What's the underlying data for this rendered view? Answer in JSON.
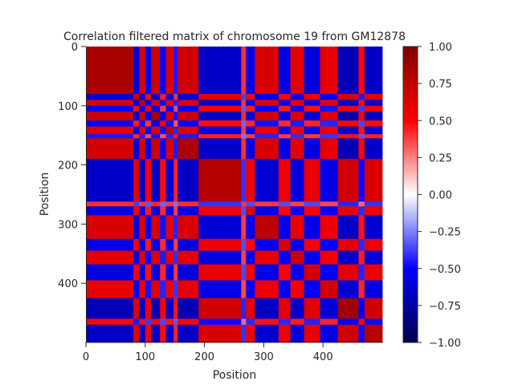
{
  "chart_data": {
    "type": "heatmap",
    "title": "Correlation filtered matrix of chromosome 19 from GM12878",
    "xlabel": "Position",
    "ylabel": "Position",
    "matrix_size": 500,
    "x_ticks": [
      0,
      100,
      200,
      300,
      400
    ],
    "y_ticks": [
      0,
      100,
      200,
      300,
      400
    ],
    "y_axis_direction": "top-down",
    "colormap": "seismic",
    "colormap_stops": [
      "#00004c",
      "#0000ff",
      "#ffffff",
      "#ff0000",
      "#7f0000"
    ],
    "vmin": -1.0,
    "vmax": 1.0,
    "colorbar_ticks": [
      1.0,
      0.75,
      0.5,
      0.25,
      0.0,
      -0.25,
      -0.5,
      -0.75,
      -1.0
    ],
    "colorbar_tick_labels": [
      "1.00",
      "0.75",
      "0.50",
      "0.25",
      "0.00",
      "−0.25",
      "−0.50",
      "−0.75",
      "−1.00"
    ],
    "compartments": [
      {
        "start": 0,
        "end": 80,
        "value": 0.82
      },
      {
        "start": 80,
        "end": 90,
        "value": -0.75
      },
      {
        "start": 90,
        "end": 100,
        "value": 0.8
      },
      {
        "start": 100,
        "end": 110,
        "value": -0.65
      },
      {
        "start": 110,
        "end": 125,
        "value": 0.85
      },
      {
        "start": 125,
        "end": 135,
        "value": -0.6
      },
      {
        "start": 135,
        "end": 148,
        "value": 0.78
      },
      {
        "start": 148,
        "end": 155,
        "value": -0.55
      },
      {
        "start": 155,
        "end": 190,
        "value": 0.82
      },
      {
        "start": 190,
        "end": 262,
        "value": -0.8
      },
      {
        "start": 262,
        "end": 270,
        "value": 0.5
      },
      {
        "start": 270,
        "end": 285,
        "value": -0.7
      },
      {
        "start": 285,
        "end": 325,
        "value": 0.78
      },
      {
        "start": 325,
        "end": 345,
        "value": -0.7
      },
      {
        "start": 345,
        "end": 368,
        "value": 0.75
      },
      {
        "start": 368,
        "end": 395,
        "value": -0.72
      },
      {
        "start": 395,
        "end": 425,
        "value": 0.72
      },
      {
        "start": 425,
        "end": 460,
        "value": -0.85
      },
      {
        "start": 460,
        "end": 470,
        "value": 0.6
      },
      {
        "start": 470,
        "end": 500,
        "value": -0.8
      }
    ]
  }
}
